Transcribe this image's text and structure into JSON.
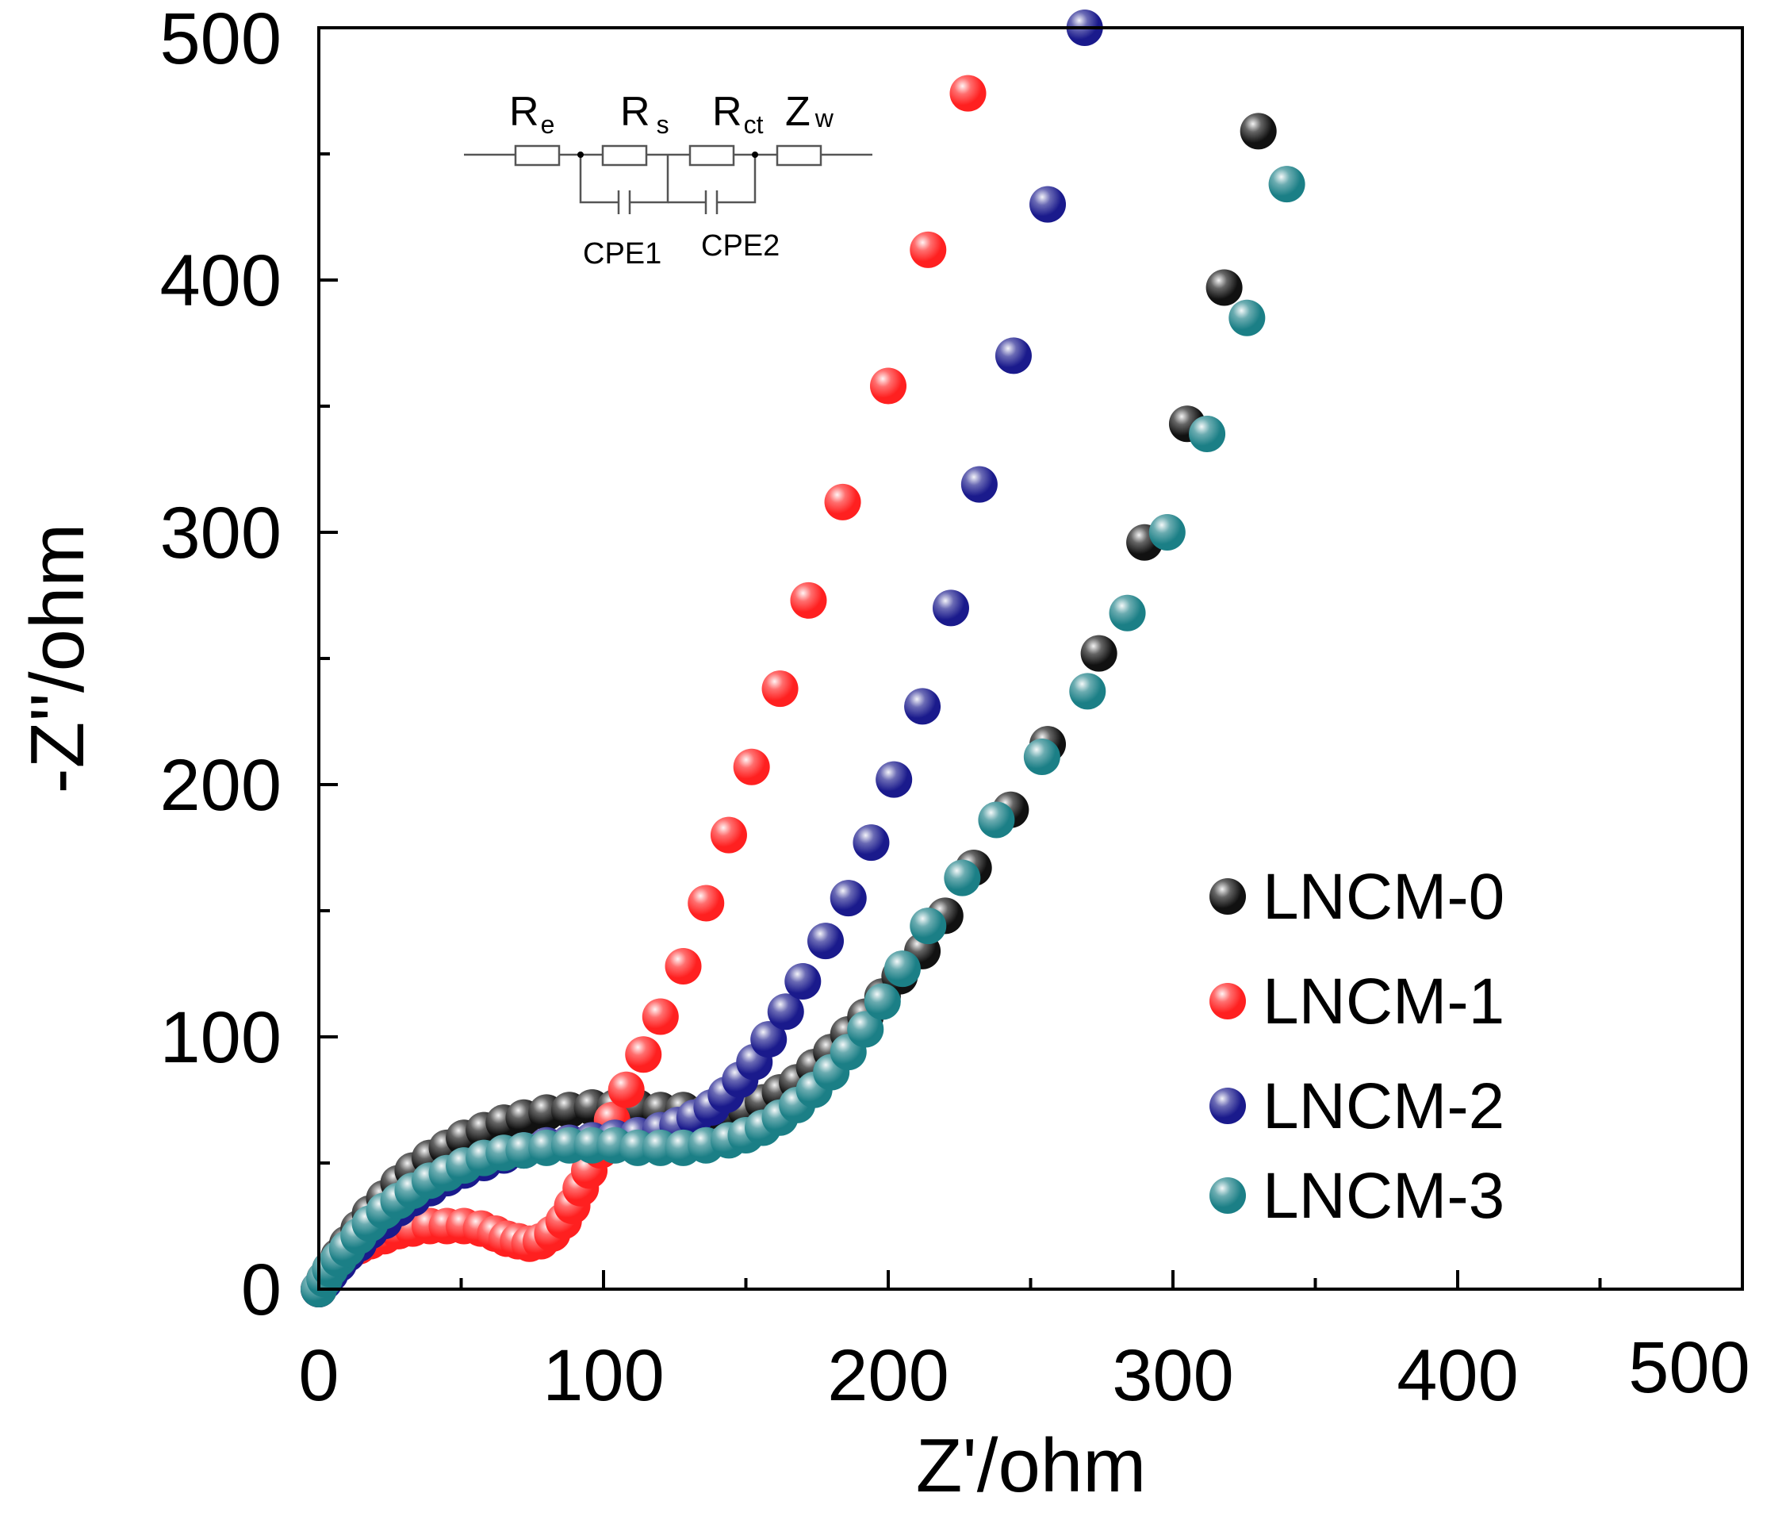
{
  "chart_data": {
    "type": "scatter",
    "title": "",
    "xlabel": "Z'/ohm",
    "ylabel": "-Z''/ohm",
    "xlim": [
      0,
      500
    ],
    "ylim": [
      0,
      500
    ],
    "x_ticks": [
      0,
      100,
      200,
      300,
      400,
      500
    ],
    "y_ticks": [
      0,
      100,
      200,
      300,
      400,
      500
    ],
    "x_tick_labels": [
      "0",
      "100",
      "200",
      "300",
      "400",
      "500"
    ],
    "y_tick_labels": [
      "0",
      "100",
      "200",
      "300",
      "400",
      "500"
    ],
    "legend_position": "bottom-right",
    "circuit": {
      "elements": [
        {
          "main": "R",
          "sub": "e"
        },
        {
          "main": "R",
          "sub": "s"
        },
        {
          "main": "R",
          "sub": "ct"
        },
        {
          "main": "Z",
          "sub": "w"
        }
      ],
      "cpe1": "CPE1",
      "cpe2": "CPE2"
    },
    "series": [
      {
        "name": "LNCM-0",
        "color": "#111111",
        "points": [
          [
            0,
            0
          ],
          [
            2,
            4
          ],
          [
            4,
            8
          ],
          [
            7,
            13
          ],
          [
            10,
            18
          ],
          [
            14,
            24
          ],
          [
            18,
            30
          ],
          [
            23,
            36
          ],
          [
            28,
            42
          ],
          [
            33,
            47
          ],
          [
            39,
            52
          ],
          [
            45,
            56
          ],
          [
            51,
            60
          ],
          [
            58,
            63
          ],
          [
            65,
            66
          ],
          [
            72,
            68
          ],
          [
            80,
            70
          ],
          [
            88,
            71
          ],
          [
            96,
            72
          ],
          [
            104,
            72
          ],
          [
            112,
            72
          ],
          [
            120,
            71
          ],
          [
            128,
            71
          ],
          [
            136,
            70
          ],
          [
            144,
            70
          ],
          [
            150,
            71
          ],
          [
            156,
            74
          ],
          [
            162,
            78
          ],
          [
            168,
            82
          ],
          [
            174,
            88
          ],
          [
            180,
            94
          ],
          [
            186,
            101
          ],
          [
            192,
            108
          ],
          [
            198,
            116
          ],
          [
            204,
            124
          ],
          [
            212,
            134
          ],
          [
            220,
            148
          ],
          [
            230,
            167
          ],
          [
            243,
            190
          ],
          [
            256,
            216
          ],
          [
            274,
            252
          ],
          [
            290,
            296
          ],
          [
            305,
            343
          ],
          [
            318,
            397
          ],
          [
            330,
            459
          ]
        ]
      },
      {
        "name": "LNCM-1",
        "color": "#ff2020",
        "points": [
          [
            0,
            0
          ],
          [
            2,
            4
          ],
          [
            4,
            7
          ],
          [
            7,
            11
          ],
          [
            10,
            14
          ],
          [
            14,
            17
          ],
          [
            18,
            19
          ],
          [
            23,
            21
          ],
          [
            28,
            23
          ],
          [
            33,
            24
          ],
          [
            39,
            25
          ],
          [
            45,
            25
          ],
          [
            51,
            25
          ],
          [
            57,
            24
          ],
          [
            62,
            22
          ],
          [
            66,
            20
          ],
          [
            70,
            19
          ],
          [
            74,
            18
          ],
          [
            78,
            19
          ],
          [
            82,
            22
          ],
          [
            86,
            27
          ],
          [
            89,
            33
          ],
          [
            92,
            40
          ],
          [
            95,
            47
          ],
          [
            99,
            55
          ],
          [
            103,
            67
          ],
          [
            108,
            79
          ],
          [
            114,
            93
          ],
          [
            120,
            108
          ],
          [
            128,
            128
          ],
          [
            136,
            153
          ],
          [
            144,
            180
          ],
          [
            152,
            207
          ],
          [
            162,
            238
          ],
          [
            172,
            273
          ],
          [
            184,
            312
          ],
          [
            200,
            358
          ],
          [
            214,
            412
          ],
          [
            228,
            474
          ]
        ]
      },
      {
        "name": "LNCM-2",
        "color": "#1a1a8c",
        "points": [
          [
            0,
            0
          ],
          [
            2,
            3
          ],
          [
            4,
            6
          ],
          [
            7,
            10
          ],
          [
            10,
            14
          ],
          [
            14,
            18
          ],
          [
            18,
            23
          ],
          [
            23,
            27
          ],
          [
            28,
            32
          ],
          [
            33,
            36
          ],
          [
            39,
            40
          ],
          [
            45,
            44
          ],
          [
            51,
            47
          ],
          [
            58,
            50
          ],
          [
            65,
            53
          ],
          [
            72,
            55
          ],
          [
            80,
            57
          ],
          [
            88,
            58
          ],
          [
            96,
            59
          ],
          [
            104,
            60
          ],
          [
            112,
            61
          ],
          [
            120,
            63
          ],
          [
            126,
            65
          ],
          [
            132,
            68
          ],
          [
            138,
            72
          ],
          [
            143,
            77
          ],
          [
            148,
            83
          ],
          [
            153,
            90
          ],
          [
            158,
            99
          ],
          [
            164,
            110
          ],
          [
            170,
            122
          ],
          [
            178,
            138
          ],
          [
            186,
            155
          ],
          [
            194,
            177
          ],
          [
            202,
            202
          ],
          [
            212,
            231
          ],
          [
            222,
            270
          ],
          [
            232,
            319
          ],
          [
            244,
            370
          ],
          [
            256,
            430
          ],
          [
            269,
            500
          ]
        ]
      },
      {
        "name": "LNCM-3",
        "color": "#1b7f86",
        "points": [
          [
            0,
            0
          ],
          [
            2,
            4
          ],
          [
            4,
            8
          ],
          [
            7,
            12
          ],
          [
            10,
            16
          ],
          [
            14,
            21
          ],
          [
            18,
            26
          ],
          [
            23,
            31
          ],
          [
            28,
            35
          ],
          [
            33,
            39
          ],
          [
            39,
            43
          ],
          [
            45,
            46
          ],
          [
            51,
            49
          ],
          [
            58,
            52
          ],
          [
            65,
            54
          ],
          [
            72,
            55
          ],
          [
            80,
            56
          ],
          [
            88,
            57
          ],
          [
            96,
            57
          ],
          [
            104,
            57
          ],
          [
            112,
            56
          ],
          [
            120,
            56
          ],
          [
            128,
            56
          ],
          [
            136,
            57
          ],
          [
            144,
            59
          ],
          [
            150,
            61
          ],
          [
            156,
            64
          ],
          [
            162,
            68
          ],
          [
            168,
            73
          ],
          [
            174,
            79
          ],
          [
            180,
            86
          ],
          [
            186,
            94
          ],
          [
            192,
            103
          ],
          [
            198,
            114
          ],
          [
            205,
            127
          ],
          [
            214,
            144
          ],
          [
            226,
            163
          ],
          [
            238,
            186
          ],
          [
            254,
            211
          ],
          [
            270,
            237
          ],
          [
            284,
            268
          ],
          [
            298,
            300
          ],
          [
            312,
            339
          ],
          [
            326,
            385
          ],
          [
            340,
            438
          ]
        ]
      }
    ]
  }
}
